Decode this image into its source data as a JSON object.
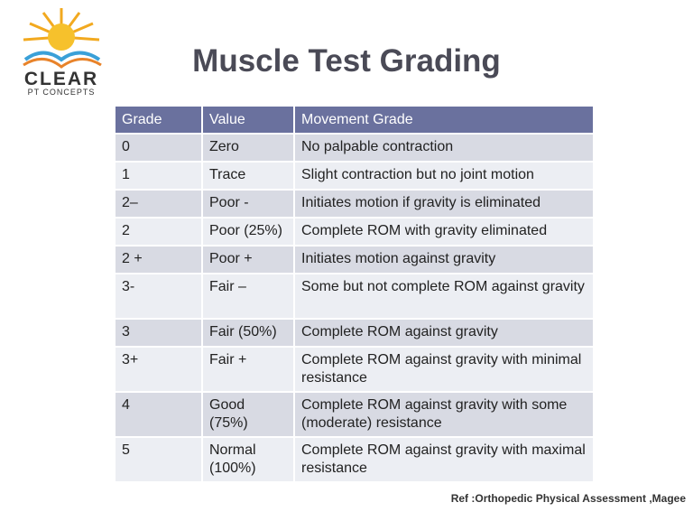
{
  "logo": {
    "name": "CLEAR",
    "tagline": "PT CONCEPTS"
  },
  "title": "Muscle Test Grading",
  "table": {
    "header": [
      "Grade",
      "Value",
      "Movement Grade"
    ],
    "rows": [
      [
        "0",
        "Zero",
        "No palpable contraction"
      ],
      [
        "1",
        "Trace",
        "Slight contraction but no joint motion"
      ],
      [
        "2–",
        "Poor -",
        "Initiates motion if gravity is eliminated"
      ],
      [
        "2",
        "Poor (25%)",
        "Complete ROM with gravity eliminated"
      ],
      [
        "2 +",
        "Poor +",
        "Initiates motion against gravity"
      ],
      [
        "3-",
        "Fair –",
        "Some but not complete ROM against gravity"
      ],
      [
        "3",
        "Fair (50%)",
        "Complete ROM against gravity"
      ],
      [
        "3+",
        "Fair +",
        "Complete ROM against gravity with minimal resistance"
      ],
      [
        "4",
        "Good (75%)",
        "Complete ROM against gravity with some (moderate) resistance"
      ],
      [
        "5",
        "Normal (100%)",
        "Complete ROM against gravity with maximal resistance"
      ]
    ]
  },
  "reference": "Ref :Orthopedic Physical Assessment ,Magee"
}
